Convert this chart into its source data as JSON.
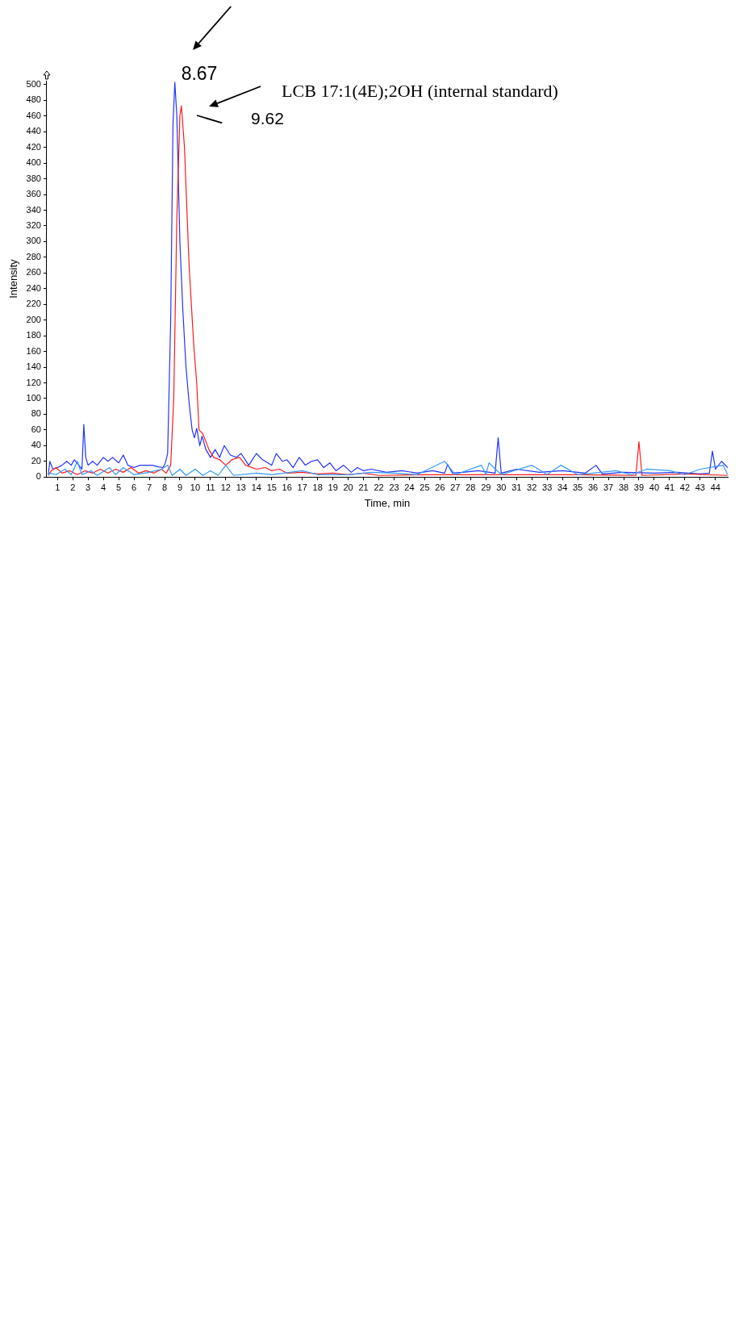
{
  "chart_data": {
    "type": "line",
    "xlabel": "Time, min",
    "ylabel": "Intensity",
    "annotations": [
      "8.67",
      "9.62",
      "LCB 17:1(4E);2OH (internal standard)"
    ],
    "xlim": [
      0.3,
      44.8
    ],
    "xticks": [
      1,
      2,
      3,
      4,
      5,
      6,
      7,
      8,
      9,
      10,
      11,
      12,
      13,
      14,
      15,
      16,
      17,
      18,
      19,
      20,
      21,
      22,
      23,
      24,
      25,
      26,
      27,
      28,
      29,
      30,
      31,
      32,
      33,
      34,
      35,
      36,
      37,
      38,
      39,
      40,
      41,
      42,
      43,
      44
    ],
    "ylim": [
      0,
      505
    ],
    "yticks": [
      0,
      20,
      40,
      60,
      80,
      100,
      120,
      140,
      160,
      180,
      200,
      220,
      240,
      260,
      280,
      300,
      320,
      340,
      360,
      380,
      400,
      420,
      440,
      460,
      480,
      500
    ],
    "grid": false,
    "legend": false,
    "marker": "none",
    "line_style": "solid",
    "series": [
      {
        "color": "#3399ff",
        "x": [
          0.4,
          0.5,
          0.9,
          1.5,
          1.9,
          2.3,
          2.6,
          3.2,
          3.6,
          4.4,
          4.8,
          5.3,
          6.0,
          7.0,
          7.8,
          8.2,
          8.5,
          9.0,
          9.4,
          10.0,
          10.5,
          11.0,
          11.5,
          12.0,
          12.5,
          14.0,
          15.0,
          17.0,
          18.0,
          20.0,
          21.5,
          23.0,
          24.5,
          26.3,
          27.0,
          28.7,
          29.0,
          29.2,
          30.0,
          32.0,
          33.0,
          33.9,
          35.0,
          36.0,
          37.5,
          38.5,
          39.5,
          41.0,
          42.0,
          43.0,
          44.5,
          44.8
        ],
        "values": [
          2,
          5,
          3,
          10,
          3,
          20,
          3,
          8,
          2,
          12,
          3,
          12,
          3,
          6,
          10,
          15,
          2,
          10,
          2,
          10,
          2,
          8,
          2,
          15,
          2,
          5,
          3,
          8,
          3,
          3,
          6,
          5,
          3,
          20,
          3,
          15,
          3,
          18,
          3,
          15,
          3,
          15,
          3,
          5,
          8,
          3,
          10,
          8,
          3,
          10,
          15,
          3
        ]
      },
      {
        "color": "#ff1a1a",
        "x": [
          0.4,
          0.6,
          0.9,
          1.3,
          1.8,
          2.3,
          2.8,
          3.3,
          3.8,
          4.3,
          4.8,
          5.3,
          5.8,
          6.3,
          6.8,
          7.3,
          7.8,
          8.1,
          8.4,
          8.6,
          8.8,
          9.0,
          9.1,
          9.3,
          9.6,
          9.9,
          10.1,
          10.25,
          10.5,
          10.9,
          11.2,
          11.6,
          12.0,
          12.4,
          12.9,
          13.3,
          14.0,
          14.6,
          15.0,
          15.5,
          16.0,
          17.0,
          18.0,
          19.0,
          20.0,
          21.0,
          22.0,
          25.0,
          30.0,
          35.0,
          38.8,
          39.0,
          39.2,
          42.0,
          44.8
        ],
        "values": [
          2,
          8,
          12,
          5,
          8,
          3,
          8,
          5,
          10,
          5,
          10,
          6,
          12,
          5,
          8,
          5,
          10,
          5,
          15,
          100,
          330,
          460,
          473,
          420,
          270,
          170,
          120,
          60,
          55,
          35,
          25,
          22,
          15,
          22,
          25,
          15,
          10,
          12,
          8,
          10,
          5,
          6,
          4,
          5,
          3,
          5,
          2,
          3,
          3,
          3,
          2,
          45,
          2,
          4,
          2
        ]
      },
      {
        "color": "#2233ff",
        "x": [
          0.4,
          0.5,
          0.7,
          1.0,
          1.3,
          1.6,
          1.9,
          2.1,
          2.4,
          2.6,
          2.72,
          2.85,
          3.0,
          3.3,
          3.6,
          4.0,
          4.3,
          4.6,
          5.0,
          5.3,
          5.6,
          6.0,
          6.4,
          6.8,
          7.2,
          7.6,
          7.9,
          8.05,
          8.2,
          8.4,
          8.55,
          8.67,
          8.8,
          9.0,
          9.2,
          9.4,
          9.6,
          9.8,
          9.95,
          10.1,
          10.3,
          10.45,
          10.7,
          11.0,
          11.3,
          11.6,
          11.9,
          12.3,
          12.7,
          13.0,
          13.5,
          14.0,
          14.4,
          15.0,
          15.3,
          15.7,
          16.0,
          16.4,
          16.8,
          17.2,
          17.6,
          18.0,
          18.4,
          18.8,
          19.2,
          19.7,
          20.2,
          20.6,
          21.0,
          21.5,
          22.5,
          23.5,
          24.5,
          25.5,
          26.3,
          26.5,
          26.8,
          27.5,
          28.5,
          29.6,
          29.8,
          30.0,
          31.0,
          32.5,
          34.0,
          35.5,
          36.2,
          36.6,
          38.0,
          40.0,
          41.5,
          43.0,
          43.6,
          43.8,
          44.0,
          44.4,
          44.8
        ],
        "values": [
          3,
          20,
          10,
          12,
          15,
          20,
          15,
          22,
          15,
          10,
          67,
          25,
          15,
          20,
          15,
          25,
          20,
          25,
          18,
          28,
          15,
          12,
          15,
          15,
          15,
          13,
          12,
          18,
          30,
          200,
          450,
          503,
          460,
          300,
          210,
          140,
          95,
          60,
          50,
          62,
          40,
          52,
          35,
          25,
          35,
          25,
          40,
          28,
          25,
          30,
          15,
          30,
          22,
          15,
          30,
          20,
          22,
          12,
          25,
          15,
          20,
          22,
          12,
          18,
          8,
          15,
          6,
          12,
          8,
          10,
          6,
          8,
          5,
          8,
          5,
          16,
          5,
          6,
          8,
          5,
          50,
          5,
          10,
          6,
          8,
          5,
          15,
          4,
          6,
          5,
          6,
          4,
          5,
          33,
          10,
          20,
          12
        ]
      }
    ]
  }
}
